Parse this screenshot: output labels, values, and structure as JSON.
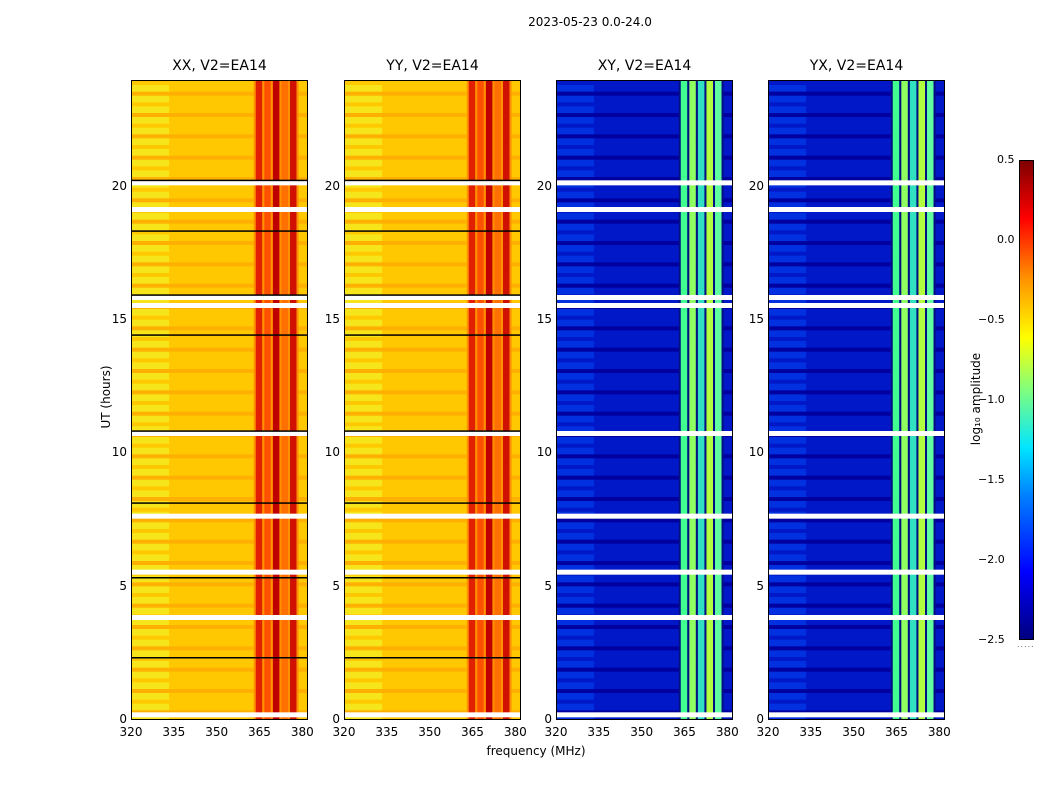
{
  "figure_title": "2023-05-23 0.0-24.0",
  "chart_data": [
    {
      "type": "heatmap",
      "title": "XX, V2=EA14",
      "pol": "XX",
      "xlabel": "frequency (MHz)",
      "ylabel": "UT (hours)",
      "xlim": [
        320,
        382
      ],
      "ylim": [
        0,
        24
      ],
      "level": "high"
    },
    {
      "type": "heatmap",
      "title": "YY, V2=EA14",
      "pol": "YY",
      "xlabel": "frequency (MHz)",
      "ylabel": "UT (hours)",
      "xlim": [
        320,
        382
      ],
      "ylim": [
        0,
        24
      ],
      "level": "high"
    },
    {
      "type": "heatmap",
      "title": "XY, V2=EA14",
      "pol": "XY",
      "xlabel": "frequency (MHz)",
      "ylabel": "UT (hours)",
      "xlim": [
        320,
        382
      ],
      "ylim": [
        0,
        24
      ],
      "level": "low"
    },
    {
      "type": "heatmap",
      "title": "YX, V2=EA14",
      "pol": "YX",
      "xlabel": "frequency (MHz)",
      "ylabel": "UT (hours)",
      "xlim": [
        320,
        382
      ],
      "ylim": [
        0,
        24
      ],
      "level": "low"
    }
  ],
  "axes": {
    "x_ticks": [
      "320",
      "335",
      "350",
      "365",
      "380"
    ],
    "y_ticks": [
      "0",
      "5",
      "10",
      "15",
      "20"
    ],
    "xlabel": "frequency (MHz)",
    "ylabel": "UT (hours)"
  },
  "colorbar": {
    "label": "log₁₀ amplitude",
    "ticks": [
      "0.5",
      "0.0",
      "−0.5",
      "−1.0",
      "−1.5",
      "−2.0",
      "−2.5"
    ],
    "range": [
      -2.5,
      0.5
    ]
  },
  "flag_gaps_hours": [
    0.25,
    3.9,
    5.6,
    7.7,
    10.8,
    15.6,
    15.9,
    19.2,
    20.2
  ],
  "rfi_band_mhz": [
    363,
    378
  ]
}
